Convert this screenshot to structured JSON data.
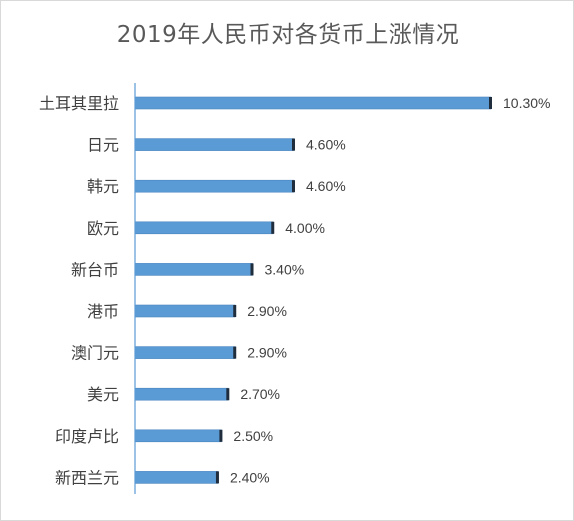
{
  "chart_data": {
    "type": "bar",
    "orientation": "horizontal",
    "title": "2019年人民币对各货币上涨情况",
    "categories": [
      "土耳其里拉",
      "日元",
      "韩元",
      "欧元",
      "新台币",
      "港币",
      "澳门元",
      "美元",
      "印度卢比",
      "新西兰元"
    ],
    "values": [
      10.3,
      4.6,
      4.6,
      4.0,
      3.4,
      2.9,
      2.9,
      2.7,
      2.5,
      2.4
    ],
    "data_labels": [
      "10.30%",
      "4.60%",
      "4.60%",
      "4.00%",
      "3.40%",
      "2.90%",
      "2.90%",
      "2.70%",
      "2.50%",
      "2.40%"
    ],
    "xlim": [
      0,
      10.3
    ],
    "grid": false,
    "legend": "none",
    "colors": {
      "bar_fill": "#5b9bd5",
      "bar_end": "#1f2d3d",
      "axis": "#5b9bd5",
      "text": "#404040",
      "title": "#595959"
    }
  }
}
